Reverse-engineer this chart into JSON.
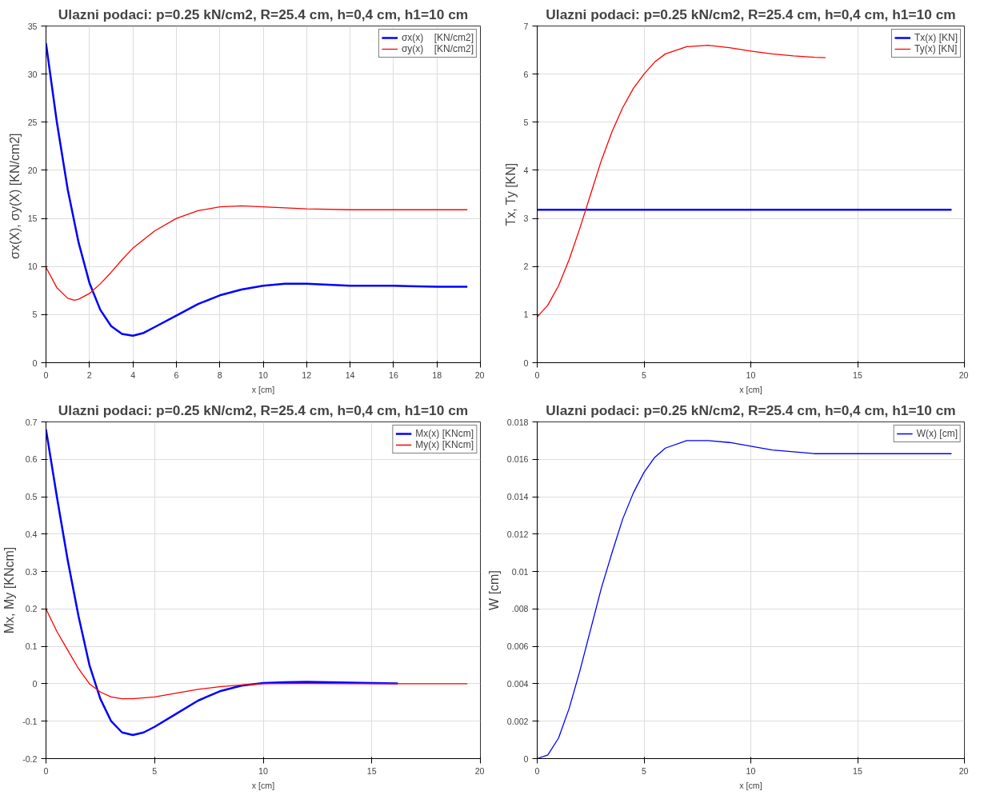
{
  "chart_data": [
    {
      "type": "line",
      "title": "Ulazni podaci: p=0.25 kN/cm2, R=25.4 cm, h=0,4 cm, h1=10 cm",
      "xlabel": "x [cm]",
      "ylabel": "σx(X), σy(X)  [KN/cm2]",
      "xlim": [
        0,
        20
      ],
      "ylim": [
        0,
        35
      ],
      "xticks": [
        0,
        2,
        4,
        6,
        8,
        10,
        12,
        14,
        16,
        18,
        20
      ],
      "yticks": [
        0,
        5,
        10,
        15,
        20,
        25,
        30,
        35
      ],
      "grid": true,
      "legend": "top right",
      "marker": "none",
      "line_style": "solid",
      "series": [
        {
          "name": "σx(x)    [KN/cm2]",
          "color": "#0000ff",
          "x": [
            0,
            0.5,
            1,
            1.5,
            2,
            2.5,
            3,
            3.5,
            4,
            4.5,
            5,
            6,
            7,
            8,
            9,
            10,
            11,
            12,
            13,
            14,
            16,
            18,
            19.4
          ],
          "values": [
            33.2,
            25,
            18,
            12.5,
            8.3,
            5.5,
            3.8,
            3.0,
            2.8,
            3.1,
            3.7,
            4.9,
            6.1,
            7.0,
            7.6,
            8.0,
            8.2,
            8.2,
            8.1,
            8.0,
            8.0,
            7.9,
            7.9
          ]
        },
        {
          "name": "σy(x)    [KN/cm2]",
          "color": "#ff0000",
          "x": [
            0,
            0.5,
            1,
            1.3,
            1.5,
            2,
            2.5,
            3,
            3.5,
            4,
            5,
            6,
            7,
            8,
            9,
            10,
            11,
            12,
            14,
            16,
            18,
            19.4
          ],
          "values": [
            9.9,
            7.8,
            6.7,
            6.5,
            6.6,
            7.2,
            8.2,
            9.4,
            10.7,
            11.9,
            13.7,
            15.0,
            15.8,
            16.2,
            16.3,
            16.2,
            16.1,
            16.0,
            15.9,
            15.9,
            15.9,
            15.9
          ]
        }
      ]
    },
    {
      "type": "line",
      "title": "Ulazni podaci: p=0.25 kN/cm2, R=25.4 cm, h=0,4 cm, h1=10 cm",
      "xlabel": "x [cm]",
      "ylabel": "Tx, Ty [KN]",
      "xlim": [
        0,
        20
      ],
      "ylim": [
        0,
        7
      ],
      "xticks": [
        0,
        5,
        10,
        15,
        20
      ],
      "yticks": [
        0,
        1,
        2,
        3,
        4,
        5,
        6,
        7
      ],
      "grid": true,
      "legend": "top right",
      "marker": "none",
      "line_style": "solid",
      "series": [
        {
          "name": "Tx(x) [KN]",
          "color": "#0000ff",
          "x": [
            0,
            19.4
          ],
          "values": [
            3.18,
            3.18
          ]
        },
        {
          "name": "Ty(x) [KN]",
          "color": "#ff0000",
          "x": [
            0,
            0.5,
            1,
            1.5,
            2,
            2.5,
            3,
            3.5,
            4,
            4.5,
            5,
            5.5,
            6,
            7,
            8,
            9,
            10,
            11,
            12,
            13,
            13.5
          ],
          "values": [
            0.95,
            1.2,
            1.6,
            2.15,
            2.8,
            3.5,
            4.2,
            4.8,
            5.3,
            5.7,
            6.0,
            6.25,
            6.42,
            6.57,
            6.6,
            6.55,
            6.48,
            6.42,
            6.38,
            6.35,
            6.34
          ]
        }
      ]
    },
    {
      "type": "line",
      "title": "Ulazni podaci: p=0.25 kN/cm2, R=25.4 cm, h=0,4 cm, h1=10 cm",
      "xlabel": "x [cm]",
      "ylabel": "Mx, My [KNcm]",
      "xlim": [
        0,
        20
      ],
      "ylim": [
        -0.2,
        0.7
      ],
      "xticks": [
        0,
        5,
        10,
        15,
        20
      ],
      "yticks": [
        -0.2,
        -0.1,
        0,
        0.1,
        0.2,
        0.3,
        0.4,
        0.5,
        0.6,
        0.7
      ],
      "grid": true,
      "legend": "top right",
      "marker": "none",
      "line_style": "solid",
      "series": [
        {
          "name": "Mx(x) [KNcm]",
          "color": "#0000ff",
          "x": [
            0,
            0.5,
            1,
            1.5,
            2,
            2.5,
            3,
            3.5,
            4,
            4.5,
            5,
            6,
            7,
            8,
            9,
            10,
            11,
            12,
            13,
            14,
            15,
            16.2
          ],
          "values": [
            0.68,
            0.5,
            0.33,
            0.18,
            0.05,
            -0.04,
            -0.1,
            -0.13,
            -0.137,
            -0.13,
            -0.115,
            -0.08,
            -0.045,
            -0.02,
            -0.005,
            0.002,
            0.004,
            0.005,
            0.004,
            0.003,
            0.002,
            0.001
          ]
        },
        {
          "name": "My(x) [KNcm]",
          "color": "#ff0000",
          "x": [
            0,
            0.5,
            1,
            1.5,
            2,
            2.5,
            3,
            3.5,
            4,
            5,
            6,
            7,
            8,
            9,
            10,
            12,
            14,
            16,
            19.4
          ],
          "values": [
            0.2,
            0.14,
            0.09,
            0.04,
            0.0,
            -0.022,
            -0.035,
            -0.04,
            -0.04,
            -0.035,
            -0.025,
            -0.015,
            -0.008,
            -0.003,
            0,
            0.001,
            0,
            0,
            0
          ]
        }
      ]
    },
    {
      "type": "line",
      "title": "Ulazni podaci: p=0.25 kN/cm2, R=25.4 cm, h=0,4 cm, h1=10 cm",
      "xlabel": "x [cm]",
      "ylabel": "W [cm]",
      "xlim": [
        0,
        20
      ],
      "ylim": [
        0,
        0.018
      ],
      "xticks": [
        0,
        5,
        10,
        15,
        20
      ],
      "yticks": [
        0,
        0.002,
        0.004,
        0.006,
        {
          "value": 0.008,
          "label": ".008"
        },
        0.01,
        0.012,
        0.014,
        0.016,
        0.018
      ],
      "grid": true,
      "legend": "top right",
      "marker": "none",
      "line_style": "solid",
      "series": [
        {
          "name": "W(x) [cm]",
          "color": "#0000ff",
          "x": [
            0,
            0.5,
            1,
            1.5,
            2,
            2.5,
            3,
            3.5,
            4,
            4.5,
            5,
            5.5,
            6,
            7,
            8,
            9,
            10,
            11,
            12,
            13,
            14,
            16,
            18,
            19.4
          ],
          "values": [
            0,
            0.0002,
            0.0011,
            0.0027,
            0.0047,
            0.0069,
            0.0091,
            0.011,
            0.0128,
            0.0142,
            0.0153,
            0.0161,
            0.0166,
            0.017,
            0.017,
            0.0169,
            0.0167,
            0.0165,
            0.0164,
            0.0163,
            0.0163,
            0.0163,
            0.0163,
            0.0163
          ]
        }
      ]
    }
  ]
}
